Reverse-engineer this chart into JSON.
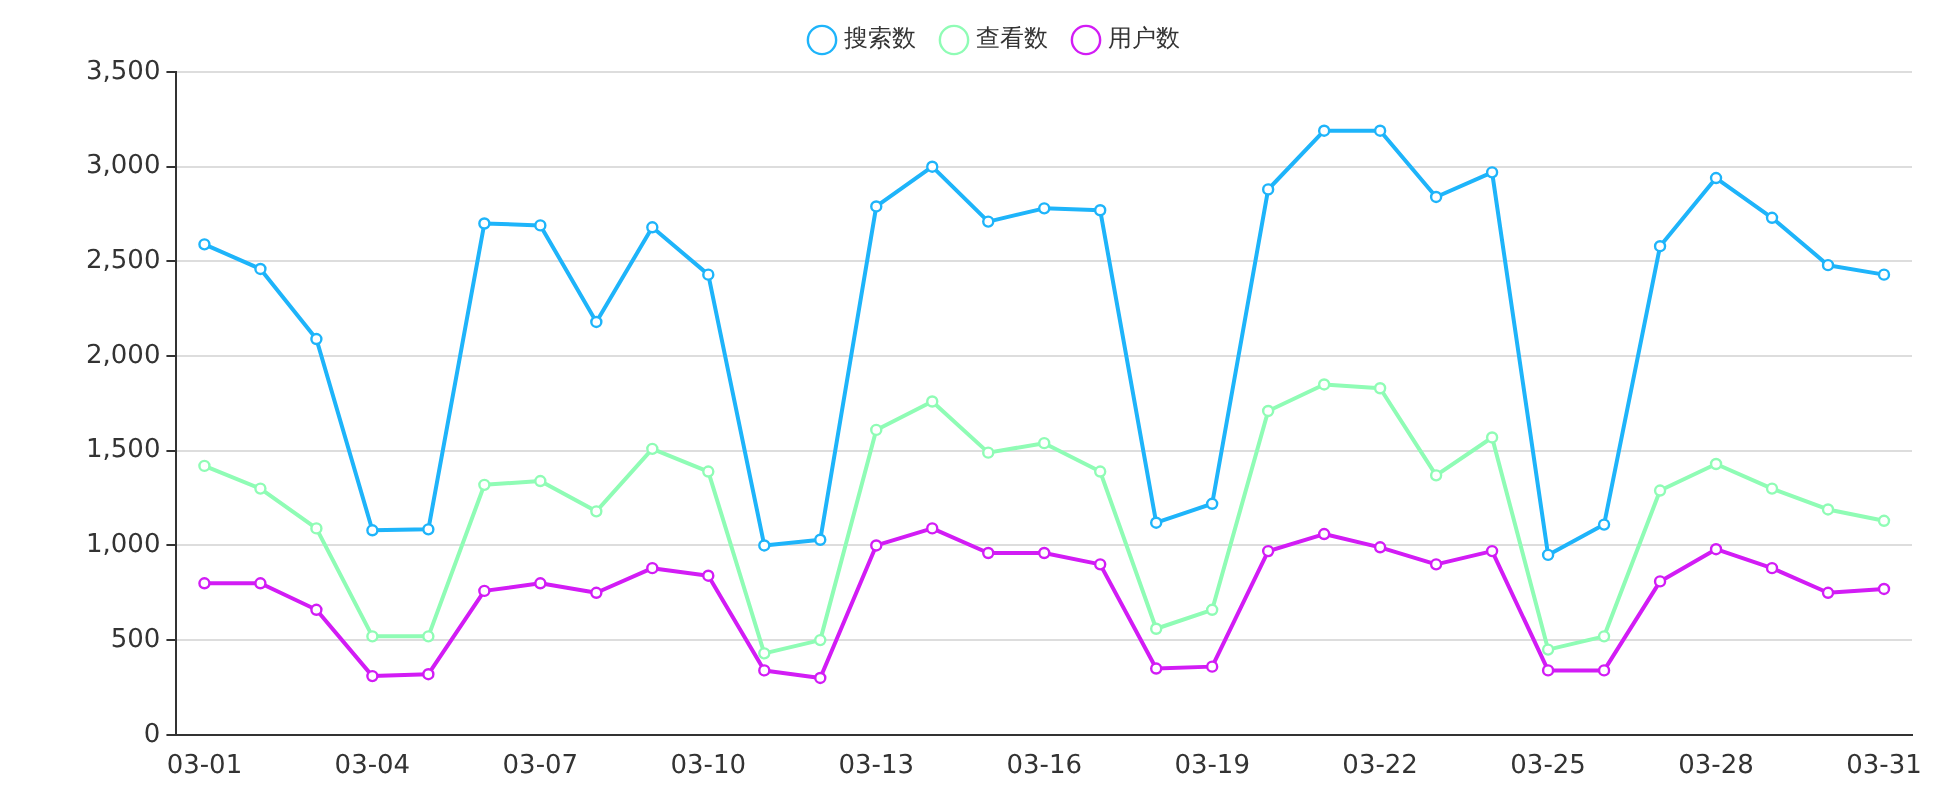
{
  "chart_data": {
    "type": "line",
    "categories": [
      "03-01",
      null,
      null,
      "03-04",
      null,
      null,
      "03-07",
      null,
      null,
      "03-10",
      null,
      null,
      "03-13",
      null,
      null,
      "03-16",
      null,
      null,
      "03-19",
      null,
      null,
      "03-22",
      null,
      null,
      "03-25",
      null,
      null,
      "03-28",
      null,
      null,
      "03-31"
    ],
    "series": [
      {
        "name": "搜索数",
        "color": "#1eb4fa",
        "values": [
          2590,
          2460,
          2090,
          1080,
          1085,
          2700,
          2690,
          2180,
          2680,
          2430,
          1000,
          1030,
          2790,
          3000,
          2710,
          2780,
          2770,
          1120,
          1220,
          2880,
          3190,
          3190,
          2840,
          2970,
          950,
          1110,
          2580,
          2940,
          2730,
          2480,
          2430
        ]
      },
      {
        "name": "查看数",
        "color": "#8ffcb5",
        "values": [
          1420,
          1300,
          1090,
          520,
          520,
          1320,
          1340,
          1180,
          1510,
          1390,
          430,
          500,
          1610,
          1760,
          1490,
          1540,
          1390,
          560,
          660,
          1710,
          1850,
          1830,
          1370,
          1570,
          450,
          520,
          1290,
          1430,
          1300,
          1190,
          1130
        ]
      },
      {
        "name": "用户数",
        "color": "#d21cf5",
        "values": [
          800,
          800,
          660,
          310,
          320,
          760,
          800,
          750,
          880,
          840,
          340,
          300,
          1000,
          1090,
          960,
          960,
          900,
          350,
          360,
          970,
          1060,
          990,
          900,
          970,
          340,
          340,
          810,
          980,
          880,
          750,
          770
        ]
      }
    ],
    "ylim": [
      0,
      3500
    ],
    "yticks": [
      {
        "value": 0,
        "label": "0"
      },
      {
        "value": 500,
        "label": "500"
      },
      {
        "value": 1000,
        "label": "1,000"
      },
      {
        "value": 1500,
        "label": "1,500"
      },
      {
        "value": 2000,
        "label": "2,000"
      },
      {
        "value": 2500,
        "label": "2,500"
      },
      {
        "value": 3000,
        "label": "3,000"
      },
      {
        "value": 3500,
        "label": "3,500"
      }
    ],
    "grid": "y",
    "legend": "top",
    "marker": "circle",
    "line_style": "solid"
  }
}
